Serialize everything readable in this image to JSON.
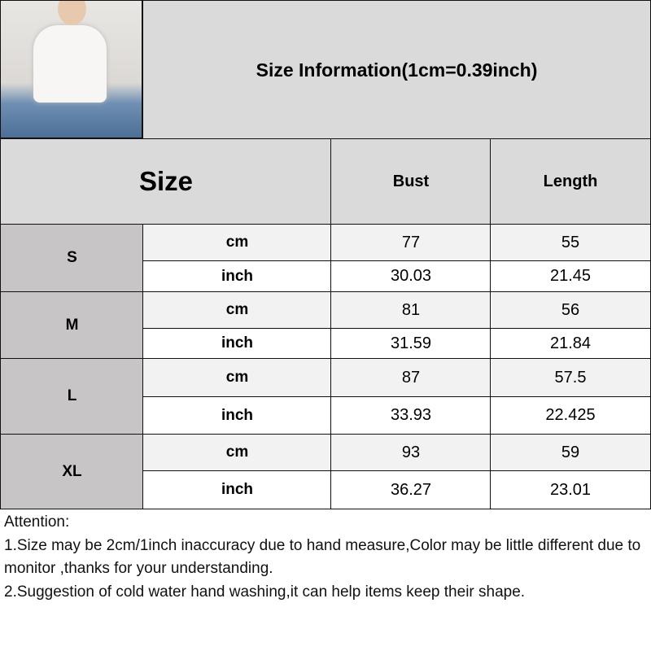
{
  "title": "Size Information(1cm=0.39inch)",
  "header": {
    "size": "Size",
    "bust": "Bust",
    "length": "Length"
  },
  "rows": [
    {
      "size": "S",
      "cm": {
        "unit": "cm",
        "bust": "77",
        "length": "55"
      },
      "inch": {
        "unit": "inch",
        "bust": "30.03",
        "length": "21.45"
      }
    },
    {
      "size": "M",
      "cm": {
        "unit": "cm",
        "bust": "81",
        "length": "56"
      },
      "inch": {
        "unit": "inch",
        "bust": "31.59",
        "length": "21.84"
      }
    },
    {
      "size": "L",
      "cm": {
        "unit": "cm",
        "bust": "87",
        "length": "57.5"
      },
      "inch": {
        "unit": "inch",
        "bust": "33.93",
        "length": "22.425"
      }
    },
    {
      "size": "XL",
      "cm": {
        "unit": "cm",
        "bust": "93",
        "length": "59"
      },
      "inch": {
        "unit": "inch",
        "bust": "36.27",
        "length": "23.01"
      }
    }
  ],
  "attention": {
    "heading": "Attention:",
    "line1": "1.Size may be 2cm/1inch inaccuracy due to hand measure,Color may be little different due to monitor ,thanks for your understanding.",
    "line2": "2.Suggestion of cold water hand washing,it can help items keep their shape."
  },
  "colors": {
    "title_bg": "#dadada",
    "size_col_bg": "#c8c5c6",
    "cm_row_bg": "#f2f2f2",
    "inch_row_bg": "#ffffff"
  }
}
